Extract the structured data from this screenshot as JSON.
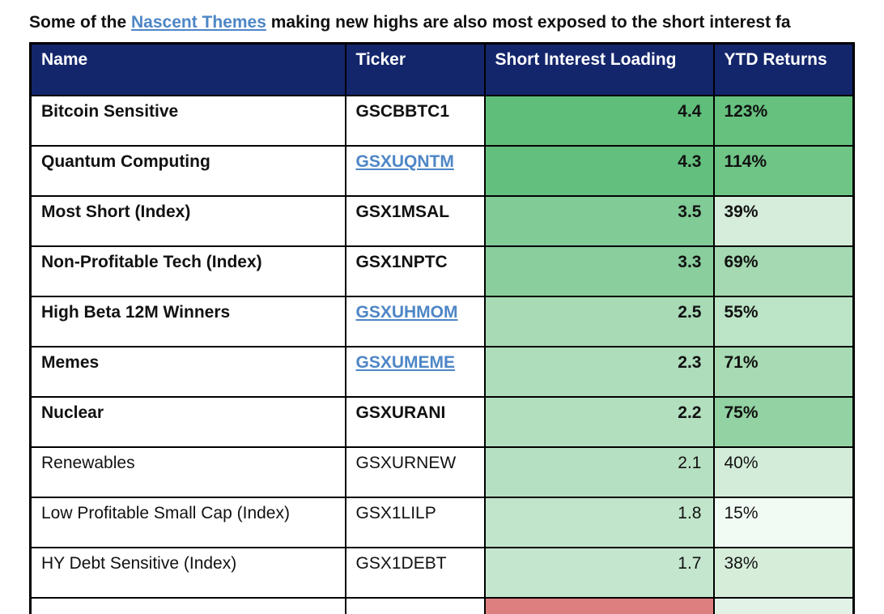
{
  "title": {
    "prefix": "Some of the ",
    "link_text": "Nascent Themes",
    "suffix": " making new highs are also most exposed to the short interest fa",
    "link_color": "#4e86c6"
  },
  "table": {
    "columns": [
      "Name",
      "Ticker",
      "Short Interest Loading",
      "YTD Returns"
    ],
    "header_bg": "#14266b",
    "header_text_color": "#ffffff",
    "ticker_link_color": "#4e86c6",
    "rows": [
      {
        "name": "Bitcoin Sensitive",
        "ticker": "GSCBBTC1",
        "ticker_is_link": false,
        "loading": "4.4",
        "ytd": "123%",
        "bold": true,
        "loading_bg": "#5fbe7a",
        "ytd_bg": "#66c17f"
      },
      {
        "name": "Quantum Computing",
        "ticker": "GSXUQNTM",
        "ticker_is_link": true,
        "loading": "4.3",
        "ytd": "114%",
        "bold": true,
        "loading_bg": "#63bf7d",
        "ytd_bg": "#6fc586"
      },
      {
        "name": "Most Short (Index)",
        "ticker": "GSX1MSAL",
        "ticker_is_link": false,
        "loading": "3.5",
        "ytd": "39%",
        "bold": true,
        "loading_bg": "#81cb96",
        "ytd_bg": "#d5edda"
      },
      {
        "name": "Non-Profitable Tech (Index)",
        "ticker": "GSX1NPTC",
        "ticker_is_link": false,
        "loading": "3.3",
        "ytd": "69%",
        "bold": true,
        "loading_bg": "#89ce9c",
        "ytd_bg": "#a5d9b1"
      },
      {
        "name": "High Beta 12M Winners",
        "ticker": "GSXUHMOM",
        "ticker_is_link": true,
        "loading": "2.5",
        "ytd": "55%",
        "bold": true,
        "loading_bg": "#a7dab5",
        "ytd_bg": "#bce4c6"
      },
      {
        "name": "Memes",
        "ticker": "GSXUMEME",
        "ticker_is_link": true,
        "loading": "2.3",
        "ytd": "71%",
        "bold": true,
        "loading_bg": "#aeddbb",
        "ytd_bg": "#a8dbb3"
      },
      {
        "name": "Nuclear",
        "ticker": "GSXURANI",
        "ticker_is_link": false,
        "loading": "2.2",
        "ytd": "75%",
        "bold": true,
        "loading_bg": "#b2dfbe",
        "ytd_bg": "#93d2a2"
      },
      {
        "name": "Renewables",
        "ticker": "GSXURNEW",
        "ticker_is_link": false,
        "loading": "2.1",
        "ytd": "40%",
        "bold": false,
        "loading_bg": "#b6e0c2",
        "ytd_bg": "#d3ecd9"
      },
      {
        "name": "Low Profitable Small Cap (Index)",
        "ticker": "GSX1LILP",
        "ticker_is_link": false,
        "loading": "1.8",
        "ytd": "15%",
        "bold": false,
        "loading_bg": "#c1e5cb",
        "ytd_bg": "#f2faf4"
      },
      {
        "name": "HY Debt Sensitive (Index)",
        "ticker": "GSX1DEBT",
        "ticker_is_link": false,
        "loading": "1.7",
        "ytd": "38%",
        "bold": false,
        "loading_bg": "#c5e6ce",
        "ytd_bg": "#d6edda"
      },
      {
        "name": "",
        "ticker": "",
        "ticker_is_link": false,
        "loading": "",
        "ytd": "",
        "bold": false,
        "loading_bg": "#dd7f7f",
        "ytd_bg": "#e2f2e6",
        "partial": true
      }
    ]
  }
}
